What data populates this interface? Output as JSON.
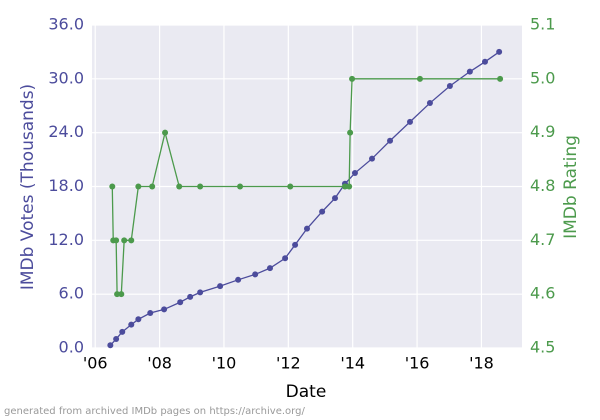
{
  "chart_data": {
    "type": "line",
    "x_label": "Date",
    "y_label": "IMDb Votes (Thousands)",
    "y2_label": "IMDb Rating",
    "footnote": "generated from archived IMDb pages on https://archive.org/",
    "background": "#eaeaf2",
    "grid": true,
    "xlim": [
      2005.9,
      2019.26
    ],
    "xticks": [
      {
        "value": 2006,
        "label": "'06"
      },
      {
        "value": 2008,
        "label": "'08"
      },
      {
        "value": 2010,
        "label": "'10"
      },
      {
        "value": 2012,
        "label": "'12"
      },
      {
        "value": 2014,
        "label": "'14"
      },
      {
        "value": 2016,
        "label": "'16"
      },
      {
        "value": 2018,
        "label": "'18"
      }
    ],
    "ylim": [
      0,
      36
    ],
    "yticks": [
      {
        "value": 0,
        "label": "0.0"
      },
      {
        "value": 6,
        "label": "6.0"
      },
      {
        "value": 12,
        "label": "12.0"
      },
      {
        "value": 18,
        "label": "18.0"
      },
      {
        "value": 24,
        "label": "24.0"
      },
      {
        "value": 30,
        "label": "30.0"
      },
      {
        "value": 36,
        "label": "36.0"
      }
    ],
    "y2lim": [
      4.5,
      5.1
    ],
    "y2ticks": [
      4.5,
      4.6,
      4.7,
      4.8,
      4.9,
      {
        "value": 5,
        "label": "5.0"
      },
      5.1
    ],
    "series": [
      {
        "name": "IMDb Votes (Thousands)",
        "color": "#4c4c9c",
        "axis": "y",
        "x": [
          2006.47,
          2006.65,
          2006.84,
          2007.12,
          2007.34,
          2007.71,
          2008.14,
          2008.64,
          2008.95,
          2009.26,
          2009.88,
          2010.44,
          2010.97,
          2011.43,
          2011.9,
          2012.21,
          2012.58,
          2013.05,
          2013.45,
          2013.76,
          2014.07,
          2014.6,
          2015.16,
          2015.78,
          2016.4,
          2017.02,
          2017.64,
          2018.11,
          2018.55
        ],
        "values": [
          0.3,
          1.0,
          1.8,
          2.6,
          3.2,
          3.9,
          4.3,
          5.1,
          5.7,
          6.2,
          6.9,
          7.6,
          8.2,
          8.9,
          10.0,
          11.5,
          13.3,
          15.2,
          16.7,
          18.3,
          19.5,
          21.1,
          23.1,
          25.2,
          27.3,
          29.2,
          30.8,
          31.9,
          33.0
        ]
      },
      {
        "name": "IMDb Rating",
        "color": "#4c9a4c",
        "axis": "y2",
        "x": [
          2006.53,
          2006.56,
          2006.65,
          2006.68,
          2006.81,
          2006.9,
          2007.12,
          2007.34,
          2007.77,
          2008.17,
          2008.61,
          2009.26,
          2010.5,
          2012.06,
          2013.76,
          2013.89,
          2013.92,
          2013.98,
          2016.09,
          2018.58
        ],
        "values": [
          4.8,
          4.7,
          4.7,
          4.6,
          4.6,
          4.7,
          4.7,
          4.8,
          4.8,
          4.9,
          4.8,
          4.8,
          4.8,
          4.8,
          4.8,
          4.8,
          4.9,
          5.0,
          5.0,
          5.0
        ]
      }
    ]
  }
}
